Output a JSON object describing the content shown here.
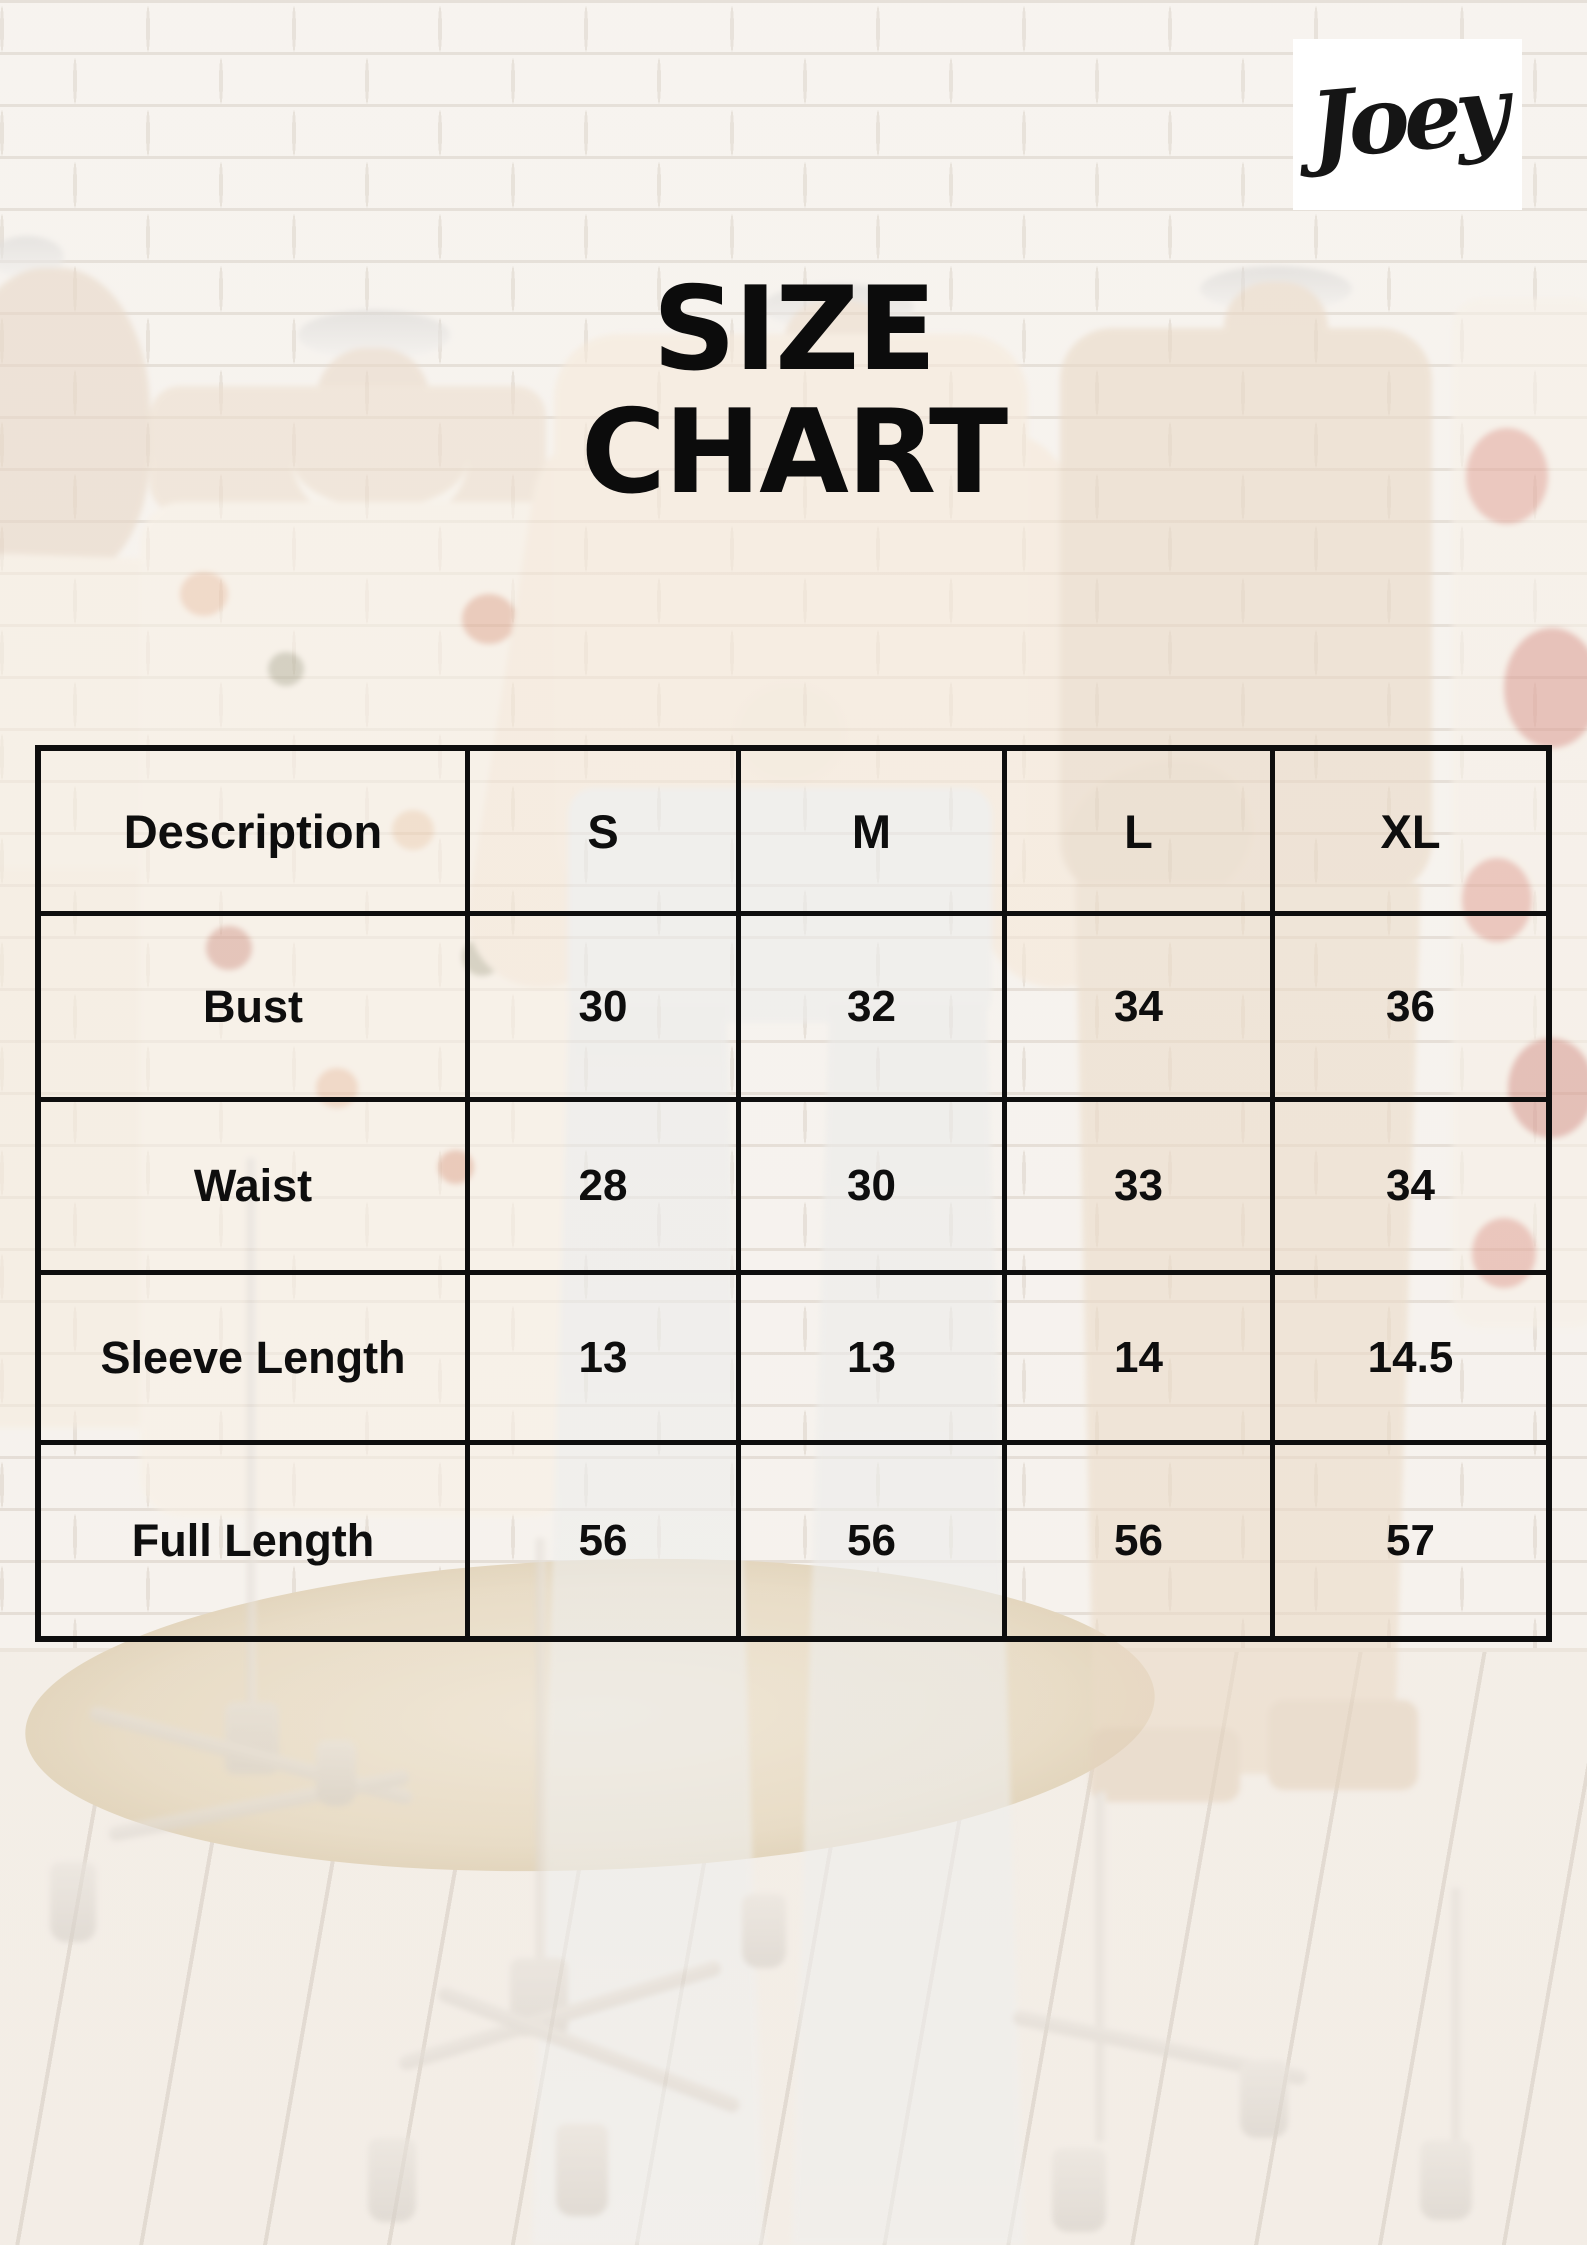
{
  "brand": {
    "logo_text": "Joey"
  },
  "title": {
    "line1": "SIZE",
    "line2": "CHART"
  },
  "chart_data": {
    "type": "table",
    "title": "SIZE CHART",
    "columns": [
      "Description",
      "S",
      "M",
      "L",
      "XL"
    ],
    "rows": [
      [
        "Bust",
        "30",
        "32",
        "34",
        "36"
      ],
      [
        "Waist",
        "28",
        "30",
        "33",
        "34"
      ],
      [
        "Sleeve Length",
        "13",
        "13",
        "14",
        "14.5"
      ],
      [
        "Full Length",
        "56",
        "56",
        "56",
        "57"
      ]
    ]
  },
  "colors": {
    "table_border": "#0e0e0e",
    "text": "#0e0e0e",
    "title_text": "#0c0c0c",
    "logo_background": "#ffffff",
    "logo_text": "#151515"
  }
}
